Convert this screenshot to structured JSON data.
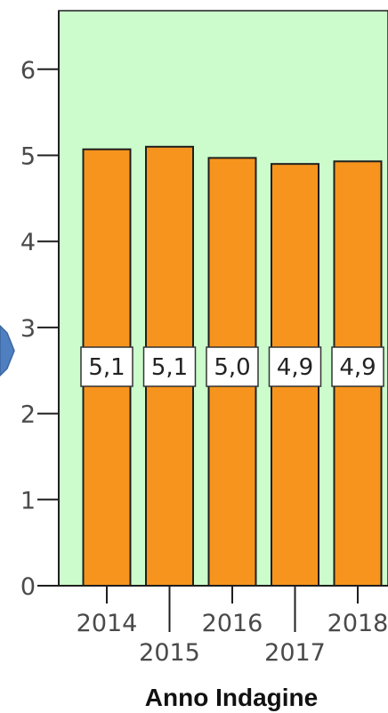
{
  "chart_data": {
    "type": "bar",
    "categories": [
      "2014",
      "2015",
      "2016",
      "2017",
      "2018"
    ],
    "values": [
      5.07,
      5.1,
      4.97,
      4.9,
      4.93
    ],
    "data_labels": [
      "5,1",
      "5,1",
      "5,0",
      "4,9",
      "4,9"
    ],
    "title": "",
    "xlabel": "Anno Indagine",
    "ylabel": "",
    "ylim": [
      0,
      6.6
    ],
    "yticks": [
      0,
      1,
      2,
      3,
      4,
      5,
      6
    ],
    "ytick_labels": [
      "0",
      "1",
      "2",
      "3",
      "4",
      "5",
      "6"
    ],
    "grid": false,
    "legend": "none"
  },
  "colors": {
    "plot_background": "#ccfccc",
    "bar_fill": "#f7941d",
    "bar_stroke": "#1f1f1f",
    "nav_arrow": "#4f7fc0"
  },
  "icons": {
    "left_edge": "chevron-right-icon"
  }
}
